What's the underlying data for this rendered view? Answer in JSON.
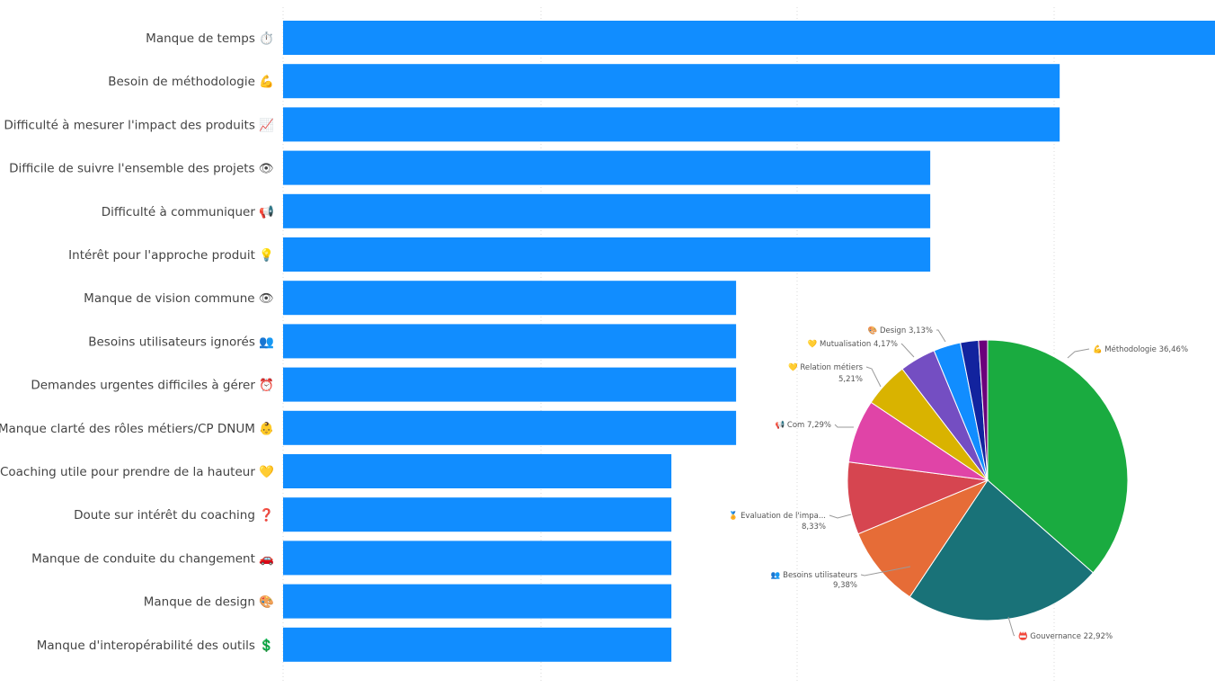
{
  "chart_data": [
    {
      "type": "bar",
      "orientation": "horizontal",
      "title": "",
      "xlabel": "",
      "ylabel": "",
      "grid": true,
      "xlim": [
        0,
        3.6
      ],
      "bar_color": "#118DFF",
      "categories": [
        "Manque de temps ⏱️",
        "Besoin de méthodologie 💪",
        "Difficulté à mesurer l'impact des produits 📈",
        "Difficile de suivre l'ensemble des projets 👁",
        "Difficulté à communiquer 📢",
        "Intérêt pour l'approche produit 💡",
        "Manque de vision commune 👁",
        "Besoins utilisateurs ignorés 👥",
        "Demandes urgentes difficiles à gérer ⏰",
        "Manque clarté des rôles métiers/CP DNUM 👶",
        "Coaching utile pour prendre de la hauteur 💛",
        "Doute sur intérêt du coaching ❓",
        "Manque de conduite du changement 🚗",
        "Manque de design 🎨",
        "Manque d'interopérabilité des outils 💲"
      ],
      "values": [
        3.6,
        3,
        3,
        2.5,
        2.5,
        2.5,
        1.75,
        1.75,
        1.75,
        1.75,
        1.5,
        1.5,
        1.5,
        1.5,
        1.5
      ]
    },
    {
      "type": "pie",
      "title": "",
      "slices": [
        {
          "label": "💪 Méthodologie 36,46%",
          "value": 36.46,
          "color": "#1AAB40"
        },
        {
          "label": "📛 Gouvernance 22,92%",
          "value": 22.92,
          "color": "#197278"
        },
        {
          "label": "👥 Besoins utilisateurs",
          "label2": "9,38%",
          "value": 9.38,
          "color": "#E66C37"
        },
        {
          "label": "🏅 Evaluation de l'impa...",
          "label2": "8,33%",
          "value": 8.33,
          "color": "#D64550"
        },
        {
          "label": "📢 Com 7,29%",
          "value": 7.29,
          "color": "#E044A7"
        },
        {
          "label": "💛 Relation métiers",
          "label2": "5,21%",
          "value": 5.21,
          "color": "#D9B300"
        },
        {
          "label": "💛 Mutualisation 4,17%",
          "value": 4.17,
          "color": "#744EC2"
        },
        {
          "label": "🎨 Design 3,13%",
          "value": 3.13,
          "color": "#118DFF"
        },
        {
          "label": "",
          "value": 2.08,
          "color": "#12239E"
        },
        {
          "label": "",
          "value": 1.04,
          "color": "#6B007B"
        }
      ]
    }
  ]
}
